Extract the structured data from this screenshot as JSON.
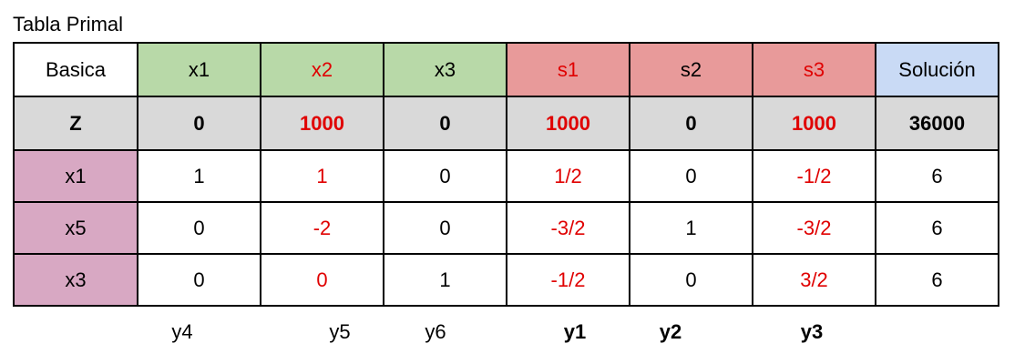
{
  "title": "Tabla Primal",
  "colors": {
    "variable_header": "#b8d9a8",
    "slack_header": "#e89a9a",
    "solution_header": "#c9daf5",
    "z_row": "#d9d9d9",
    "basic_var": "#d8a8c3",
    "highlight_text": "#e00000"
  },
  "table": {
    "header": [
      "Basica",
      "x1",
      "x2",
      "x3",
      "s1",
      "s2",
      "s3",
      "Solución"
    ],
    "z_row": [
      "Z",
      "0",
      "1000",
      "0",
      "1000",
      "0",
      "1000",
      "36000"
    ],
    "rows": [
      [
        "x1",
        "1",
        "1",
        "0",
        "1/2",
        "0",
        "-1/2",
        "6"
      ],
      [
        "x5",
        "0",
        "-2",
        "0",
        "-3/2",
        "1",
        "-3/2",
        "6"
      ],
      [
        "x3",
        "0",
        "0",
        "1",
        "-1/2",
        "0",
        "3/2",
        "6"
      ]
    ]
  },
  "dual_labels": [
    "y4",
    "y5",
    "y6",
    "y1",
    "y2",
    "y3"
  ]
}
